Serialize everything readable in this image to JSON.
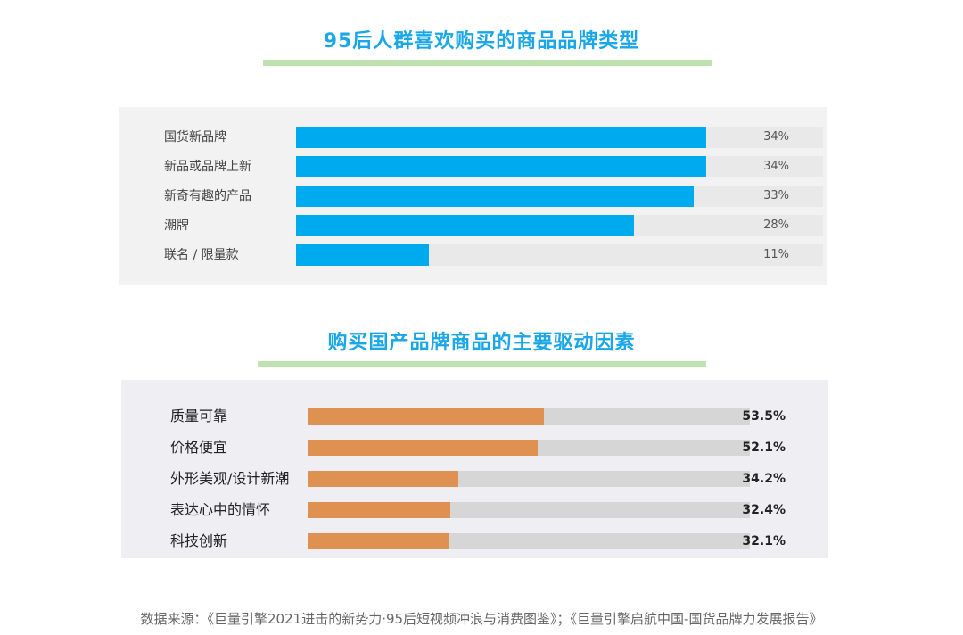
{
  "chart_data": [
    {
      "type": "bar",
      "title": "95后人群喜欢购买的商品品牌类型",
      "categories": [
        "国货新品牌",
        "新品或品牌上新",
        "新奇有趣的产品",
        "潮牌",
        "联名 / 限量款"
      ],
      "values": [
        34,
        34,
        33,
        28,
        11
      ],
      "value_labels": [
        "34%",
        "34%",
        "33%",
        "28%",
        "11%"
      ],
      "color": "#00aaee",
      "track_color": "#e9e9e9"
    },
    {
      "type": "bar",
      "title": "购买国产品牌商品的主要驱动因素",
      "categories": [
        "质量可靠",
        "价格便宜",
        "外形美观/设计新潮",
        "表达心中的情怀",
        "科技创新"
      ],
      "values": [
        53.5,
        52.1,
        34.2,
        32.4,
        32.1
      ],
      "value_labels": [
        "53.5%",
        "52.1%",
        "34.2%",
        "32.4%",
        "32.1%"
      ],
      "color": "#de9150",
      "track_color": "#d6d6d6"
    }
  ],
  "footer": "数据来源：《巨量引擎2021进击的新势力·95后短视频冲浪与消费图鉴》；《巨量引擎启航中国-国货品牌力发展报告》"
}
